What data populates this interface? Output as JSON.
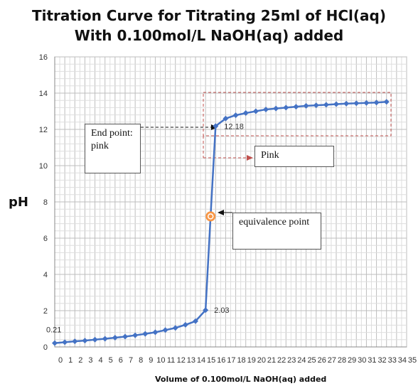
{
  "chart_data": {
    "type": "line",
    "title_line1": "Titration Curve for Titrating 25ml of HCl(aq)",
    "title_line2": "With 0.100mol/L NaOH(aq) added",
    "xlabel": "Volume of 0.100mol/L NaOH(aq) added",
    "ylabel": "pH",
    "xlim": [
      0,
      35
    ],
    "ylim": [
      0,
      16
    ],
    "x_ticks": [
      "0",
      "1",
      "2",
      "3",
      "4",
      "5",
      "6",
      "7",
      "8",
      "9",
      "10",
      "11",
      "12",
      "13",
      "14",
      "15",
      "16",
      "17",
      "18",
      "19",
      "20",
      "21",
      "22",
      "23",
      "24",
      "25",
      "26",
      "27",
      "28",
      "29",
      "30",
      "31",
      "32",
      "33",
      "34",
      "35"
    ],
    "y_ticks": [
      "0",
      "2",
      "4",
      "6",
      "8",
      "10",
      "12",
      "14",
      "16"
    ],
    "grid": true,
    "series": [
      {
        "color": "#4472C4",
        "x": [
          0,
          1,
          2,
          3,
          4,
          5,
          6,
          7,
          8,
          9,
          10,
          11,
          12,
          13,
          14,
          15,
          15.5,
          16,
          17,
          18,
          19,
          20,
          21,
          22,
          23,
          24,
          25,
          26,
          27,
          28,
          29,
          30,
          31,
          32,
          33
        ],
        "y": [
          0.21,
          0.26,
          0.31,
          0.35,
          0.4,
          0.45,
          0.51,
          0.57,
          0.64,
          0.72,
          0.81,
          0.93,
          1.05,
          1.22,
          1.42,
          2.03,
          7.2,
          12.18,
          12.6,
          12.78,
          12.9,
          13.0,
          13.1,
          13.15,
          13.2,
          13.25,
          13.3,
          13.33,
          13.36,
          13.39,
          13.42,
          13.44,
          13.46,
          13.48,
          13.52
        ]
      }
    ],
    "data_labels": [
      {
        "text": "0.21",
        "x": 0,
        "y": 0.21
      },
      {
        "text": "2.03",
        "x": 15,
        "y": 2.03
      },
      {
        "text": "12.18",
        "x": 16,
        "y": 12.18
      }
    ],
    "equivalence_point": {
      "x": 15.5,
      "y": 7.2,
      "color": "#F79646"
    },
    "annotations": {
      "end_point": "End point: pink",
      "equivalence": "equivalence point",
      "pink": "Pink"
    },
    "highlight_color": "#C0504D"
  }
}
